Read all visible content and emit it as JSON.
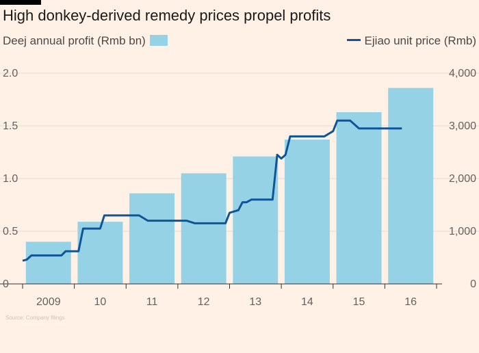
{
  "title": "High donkey-derived remedy prices propel profits",
  "legend": {
    "profit_label": "Deej annual profit (Rmb bn)",
    "price_label": "Ejiao unit price (Rmb)"
  },
  "colors": {
    "bar": "#96D2E6",
    "line": "#0F5499",
    "background": "#FFF1E5",
    "grid": "#E6D9CE",
    "axis": "#33302E"
  },
  "chart_data": {
    "type": "bar+line",
    "categories": [
      "2009",
      "10",
      "11",
      "12",
      "13",
      "14",
      "15",
      "16"
    ],
    "series": [
      {
        "name": "Deej annual profit (Rmb bn)",
        "type": "bar",
        "axis": "left",
        "values": [
          0.4,
          0.59,
          0.86,
          1.05,
          1.21,
          1.37,
          1.63,
          1.86
        ]
      },
      {
        "name": "Ejiao unit price (Rmb)",
        "type": "line",
        "axis": "right",
        "points": [
          [
            2009.0,
            440
          ],
          [
            2009.08,
            460
          ],
          [
            2009.17,
            540
          ],
          [
            2009.75,
            540
          ],
          [
            2009.83,
            620
          ],
          [
            2010.08,
            620
          ],
          [
            2010.17,
            1050
          ],
          [
            2010.5,
            1050
          ],
          [
            2010.58,
            1300
          ],
          [
            2011.25,
            1300
          ],
          [
            2011.42,
            1200
          ],
          [
            2012.17,
            1200
          ],
          [
            2012.33,
            1150
          ],
          [
            2012.92,
            1150
          ],
          [
            2013.0,
            1350
          ],
          [
            2013.17,
            1400
          ],
          [
            2013.25,
            1550
          ],
          [
            2013.33,
            1550
          ],
          [
            2013.42,
            1600
          ],
          [
            2013.83,
            1600
          ],
          [
            2013.92,
            2450
          ],
          [
            2014.0,
            2380
          ],
          [
            2014.08,
            2450
          ],
          [
            2014.17,
            2800
          ],
          [
            2014.83,
            2800
          ],
          [
            2015.0,
            2900
          ],
          [
            2015.08,
            3100
          ],
          [
            2015.33,
            3100
          ],
          [
            2015.5,
            2950
          ],
          [
            2016.33,
            2950
          ]
        ]
      }
    ],
    "y_left": {
      "lim": [
        0,
        2.0
      ],
      "ticks": [
        "0",
        "0.5",
        "1.0",
        "1.5",
        "2.0"
      ]
    },
    "y_right": {
      "lim": [
        0,
        4000
      ],
      "ticks": [
        "0",
        "1,000",
        "2,000",
        "3,000",
        "4,000"
      ]
    },
    "grid": true,
    "legend_position": "top"
  },
  "source_text": "Source: Company filings"
}
